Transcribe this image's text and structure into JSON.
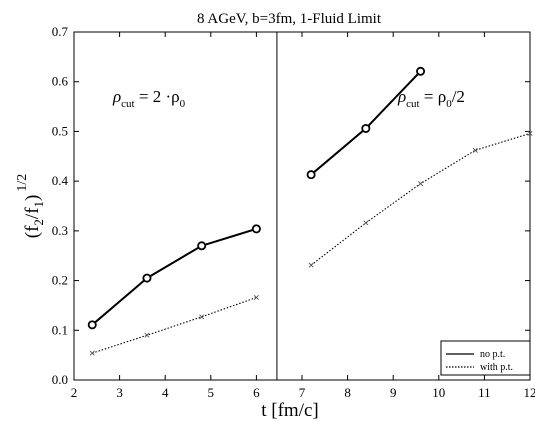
{
  "chart_data": {
    "type": "line",
    "title": "8 AGeV, b=3fm, 1-Fluid Limit",
    "xlabel": "t [fm/c]",
    "ylabel_base": "(f",
    "ylabel_sub2": "2",
    "ylabel_slash": "/f",
    "ylabel_sub1": "1",
    "ylabel_close": ")",
    "ylabel_sup": "1/2",
    "xlim": [
      2,
      12
    ],
    "ylim": [
      0,
      0.7
    ],
    "x_ticks": [
      "2",
      "3",
      "4",
      "5",
      "6",
      "7",
      "8",
      "9",
      "10",
      "11",
      "12"
    ],
    "y_ticks": [
      "0.0",
      "0.1",
      "0.2",
      "0.3",
      "0.4",
      "0.5",
      "0.6",
      "0.7"
    ],
    "divider_x": 6.45,
    "annotations": {
      "left": {
        "rho": "ρ",
        "sub": "cut",
        "rest": " = 2 ·ρ",
        "sub0": "0"
      },
      "right": {
        "rho": "ρ",
        "sub": "cut",
        "rest": " = ρ",
        "sub0": "0",
        "tail": "/2"
      }
    },
    "legend": {
      "position": "bottom-right",
      "entries": [
        {
          "label": "no p.t.",
          "style": "solid"
        },
        {
          "label": "with p.t.",
          "style": "dotted"
        }
      ]
    },
    "series": [
      {
        "label_ref": "no p.t.",
        "style": "solid",
        "marker": "circle",
        "segment": "left",
        "x": [
          2.4,
          3.6,
          4.8,
          6.0
        ],
        "y": [
          0.111,
          0.205,
          0.27,
          0.304
        ]
      },
      {
        "label_ref": "no p.t.",
        "style": "solid",
        "marker": "circle",
        "segment": "right",
        "x": [
          7.2,
          8.4,
          9.6
        ],
        "y": [
          0.413,
          0.506,
          0.621
        ]
      },
      {
        "label_ref": "with p.t.",
        "style": "dotted",
        "marker": "x",
        "segment": "left",
        "x": [
          2.4,
          3.6,
          4.8,
          6.0
        ],
        "y": [
          0.054,
          0.09,
          0.127,
          0.166
        ]
      },
      {
        "label_ref": "with p.t.",
        "style": "dotted",
        "marker": "x",
        "segment": "right",
        "x": [
          7.2,
          8.4,
          9.6,
          10.8,
          12.0
        ],
        "y": [
          0.231,
          0.316,
          0.395,
          0.462,
          0.496
        ]
      }
    ]
  }
}
